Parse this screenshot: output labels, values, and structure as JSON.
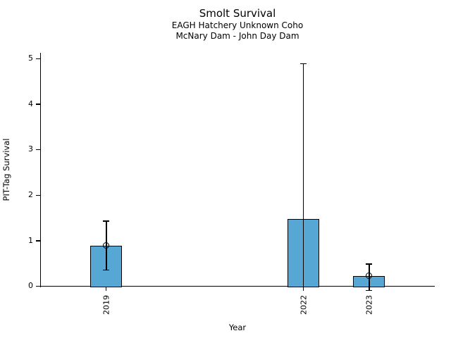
{
  "chart_data": {
    "type": "bar",
    "title": "Smolt Survival",
    "subtitle_line1": "EAGH Hatchery Unknown Coho",
    "subtitle_line2": "McNary Dam - John Day Dam",
    "xlabel": "Year",
    "ylabel": "PIT-Tag Survival",
    "categories": [
      "2019",
      "2022",
      "2023"
    ],
    "x_numeric": [
      2019,
      2022,
      2023
    ],
    "values": [
      0.9,
      1.48,
      0.23
    ],
    "error_low": [
      0.36,
      0.0,
      -0.09
    ],
    "error_high": [
      1.43,
      4.89,
      0.49
    ],
    "error_caps_low": [
      true,
      false,
      true
    ],
    "point_markers": [
      0.9,
      null,
      0.23
    ],
    "yticks": [
      0,
      1,
      2,
      3,
      4,
      5
    ],
    "ylim": [
      0,
      5.13
    ],
    "xlim": [
      2018,
      2024
    ],
    "bar_width": 0.48,
    "bar_color": "#57a7d4",
    "bar_edge_color": "#000000",
    "error_color": "#000000",
    "grid": false,
    "legend": false
  }
}
